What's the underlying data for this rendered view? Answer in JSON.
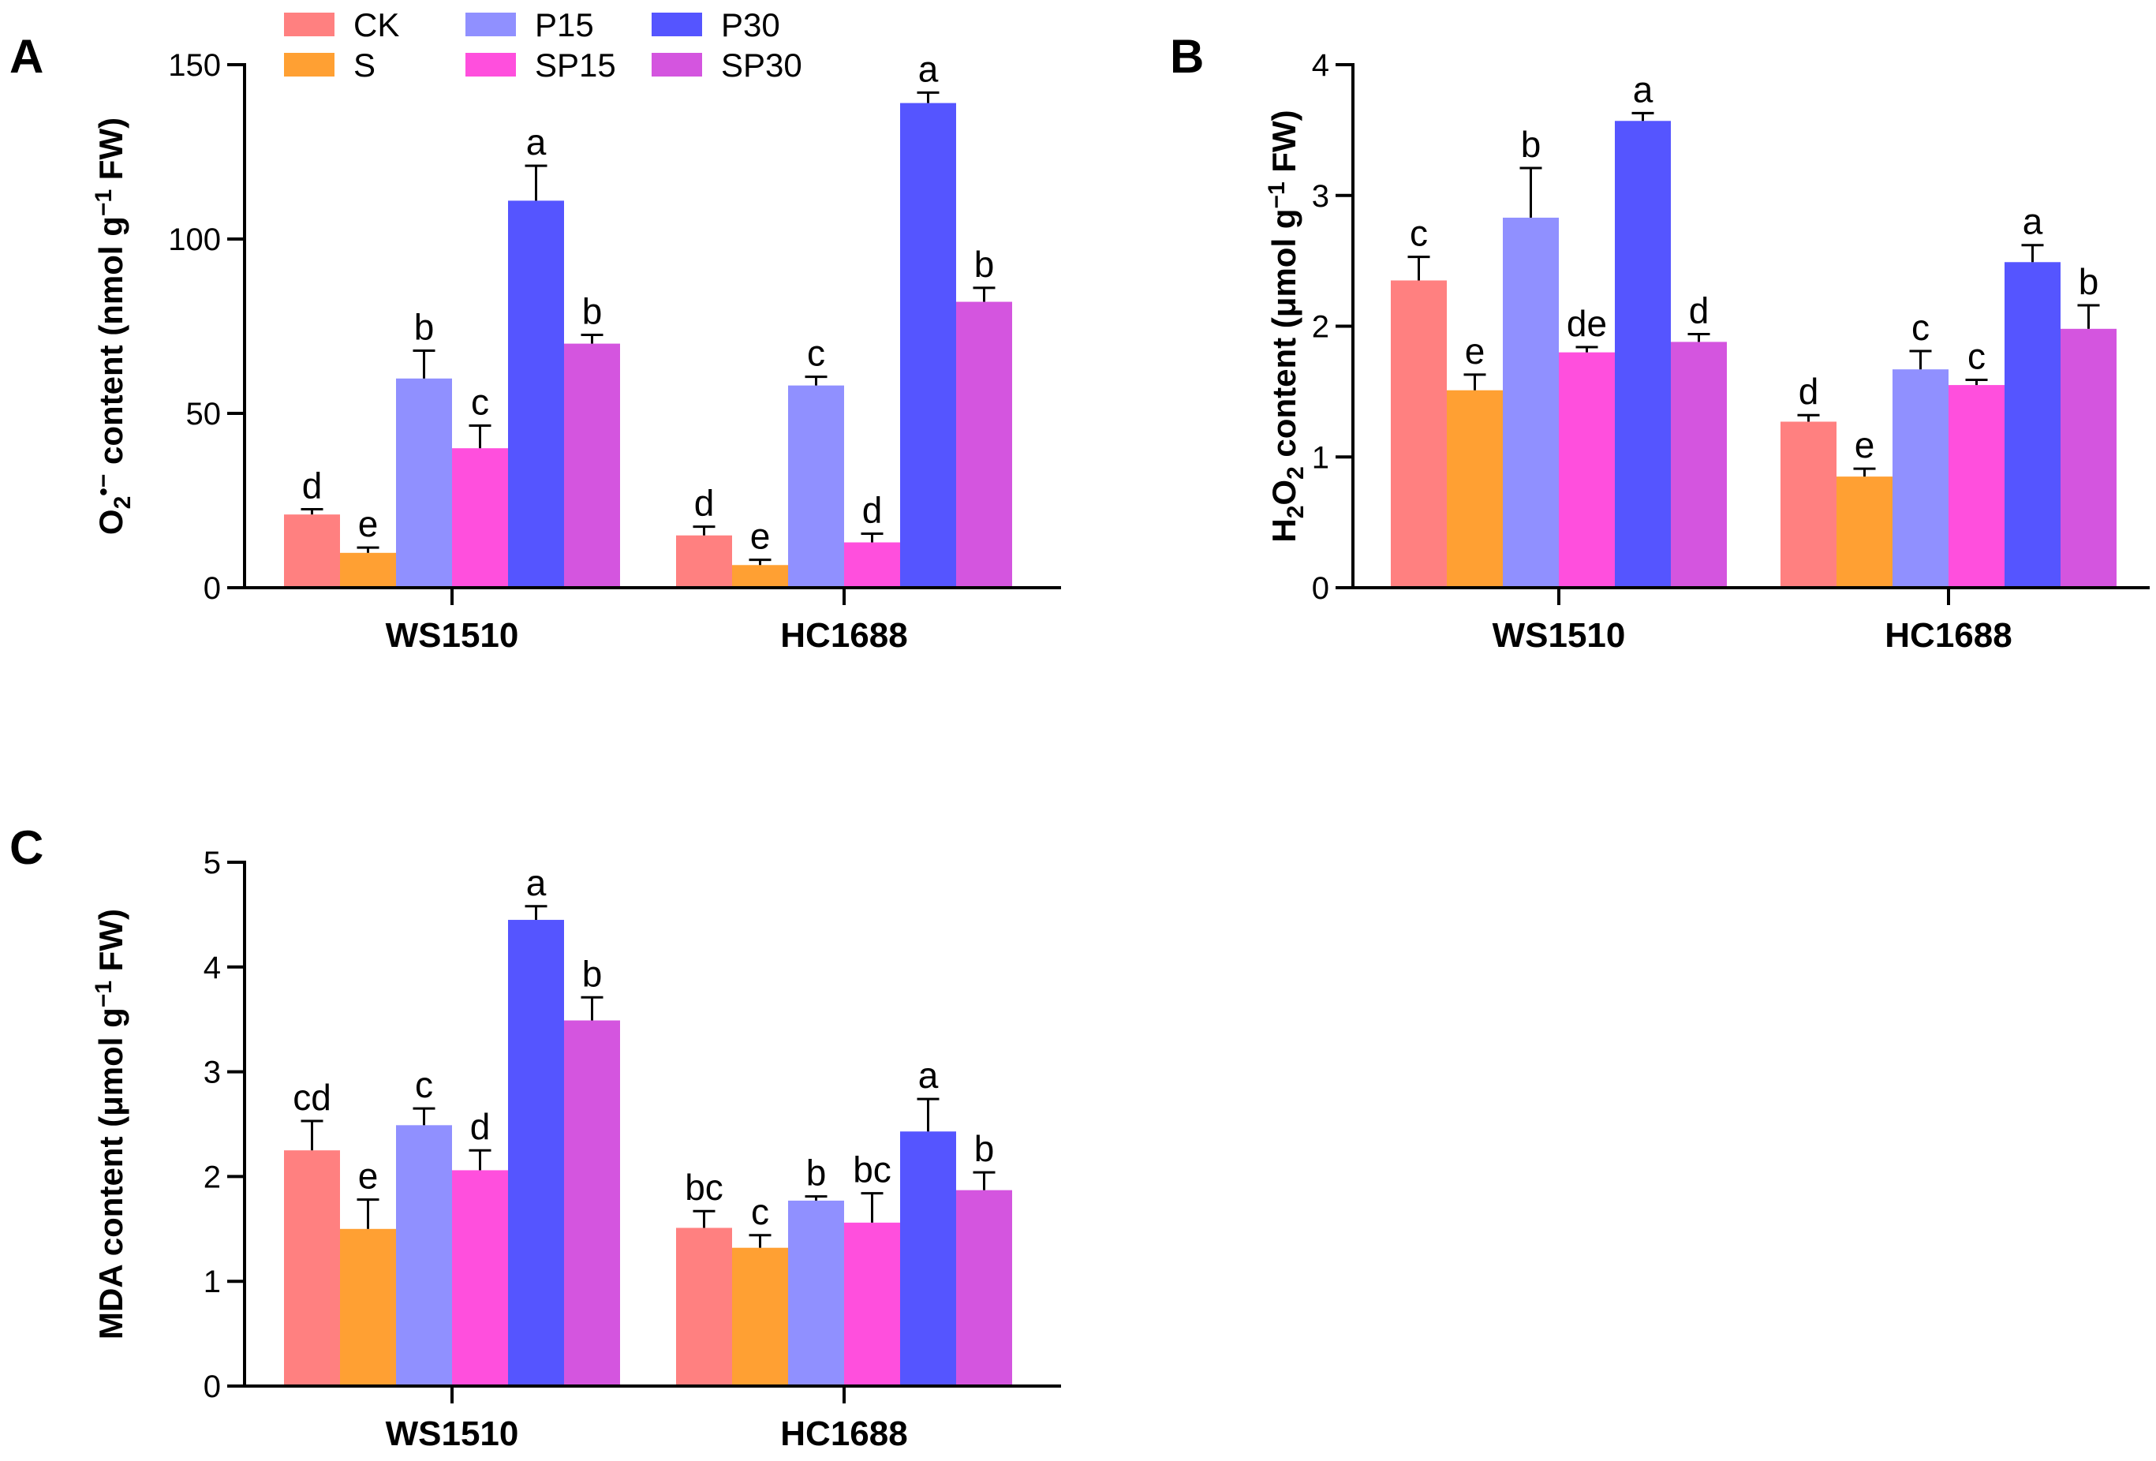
{
  "legend": {
    "items": [
      {
        "name": "CK",
        "color": "#FF8080"
      },
      {
        "name": "S",
        "color": "#FFA033"
      },
      {
        "name": "P15",
        "color": "#9090FF"
      },
      {
        "name": "SP15",
        "color": "#FF4FDD"
      },
      {
        "name": "P30",
        "color": "#5555FF"
      },
      {
        "name": "SP30",
        "color": "#D455DF"
      }
    ]
  },
  "chart_data": [
    {
      "panel": "A",
      "type": "bar",
      "title": "",
      "ylabel_parts": [
        "O",
        "2",
        "•−",
        " content (nmol g",
        "−1",
        " FW)"
      ],
      "xlabel": "",
      "ylim": [
        0,
        150
      ],
      "yticks": [
        0,
        50,
        100,
        150
      ],
      "categories": [
        "WS1510",
        "HC1688"
      ],
      "series": [
        {
          "name": "CK",
          "values": [
            21,
            15
          ],
          "errors": [
            1.5,
            2.5
          ],
          "letters": [
            "d",
            "d"
          ]
        },
        {
          "name": "S",
          "values": [
            10,
            6.5
          ],
          "errors": [
            1.5,
            1.5
          ],
          "letters": [
            "e",
            "e"
          ]
        },
        {
          "name": "P15",
          "values": [
            60,
            58
          ],
          "errors": [
            8,
            2.5
          ],
          "letters": [
            "b",
            "c"
          ]
        },
        {
          "name": "SP15",
          "values": [
            40,
            13
          ],
          "errors": [
            6.5,
            2.5
          ],
          "letters": [
            "c",
            "d"
          ]
        },
        {
          "name": "P30",
          "values": [
            111,
            139
          ],
          "errors": [
            10,
            3
          ],
          "letters": [
            "a",
            "a"
          ]
        },
        {
          "name": "SP30",
          "values": [
            70,
            82
          ],
          "errors": [
            2.5,
            4
          ],
          "letters": [
            "b",
            "b"
          ]
        }
      ]
    },
    {
      "panel": "B",
      "type": "bar",
      "title": "",
      "ylabel_parts": [
        "H",
        "2",
        "O",
        "2",
        " content (μmol g",
        "−1",
        " FW)"
      ],
      "xlabel": "",
      "ylim": [
        0,
        4
      ],
      "yticks": [
        0,
        1,
        2,
        3,
        4
      ],
      "categories": [
        "WS1510",
        "HC1688"
      ],
      "series": [
        {
          "name": "CK",
          "values": [
            2.35,
            1.27
          ],
          "errors": [
            0.18,
            0.05
          ],
          "letters": [
            "c",
            "d"
          ]
        },
        {
          "name": "S",
          "values": [
            1.51,
            0.85
          ],
          "errors": [
            0.12,
            0.06
          ],
          "letters": [
            "e",
            "e"
          ]
        },
        {
          "name": "P15",
          "values": [
            2.83,
            1.67
          ],
          "errors": [
            0.38,
            0.14
          ],
          "letters": [
            "b",
            "c"
          ]
        },
        {
          "name": "SP15",
          "values": [
            1.8,
            1.55
          ],
          "errors": [
            0.04,
            0.04
          ],
          "letters": [
            "de",
            "c"
          ]
        },
        {
          "name": "P30",
          "values": [
            3.57,
            2.49
          ],
          "errors": [
            0.06,
            0.13
          ],
          "letters": [
            "a",
            "a"
          ]
        },
        {
          "name": "SP30",
          "values": [
            1.88,
            1.98
          ],
          "errors": [
            0.06,
            0.18
          ],
          "letters": [
            "d",
            "b"
          ]
        }
      ]
    },
    {
      "panel": "C",
      "type": "bar",
      "title": "",
      "ylabel_parts": [
        "MDA content (μmol g",
        "−1",
        " FW)"
      ],
      "xlabel": "",
      "ylim": [
        0,
        5
      ],
      "yticks": [
        0,
        1,
        2,
        3,
        4,
        5
      ],
      "categories": [
        "WS1510",
        "HC1688"
      ],
      "series": [
        {
          "name": "CK",
          "values": [
            2.25,
            1.51
          ],
          "errors": [
            0.28,
            0.16
          ],
          "letters": [
            "cd",
            "bc"
          ]
        },
        {
          "name": "S",
          "values": [
            1.5,
            1.32
          ],
          "errors": [
            0.28,
            0.12
          ],
          "letters": [
            "e",
            "c"
          ]
        },
        {
          "name": "P15",
          "values": [
            2.49,
            1.77
          ],
          "errors": [
            0.16,
            0.04
          ],
          "letters": [
            "c",
            "b"
          ]
        },
        {
          "name": "SP15",
          "values": [
            2.06,
            1.56
          ],
          "errors": [
            0.19,
            0.28
          ],
          "letters": [
            "d",
            "bc"
          ]
        },
        {
          "name": "P30",
          "values": [
            4.45,
            2.43
          ],
          "errors": [
            0.13,
            0.31
          ],
          "letters": [
            "a",
            "a"
          ]
        },
        {
          "name": "SP30",
          "values": [
            3.49,
            1.87
          ],
          "errors": [
            0.22,
            0.17
          ],
          "letters": [
            "b",
            "b"
          ]
        }
      ]
    }
  ]
}
